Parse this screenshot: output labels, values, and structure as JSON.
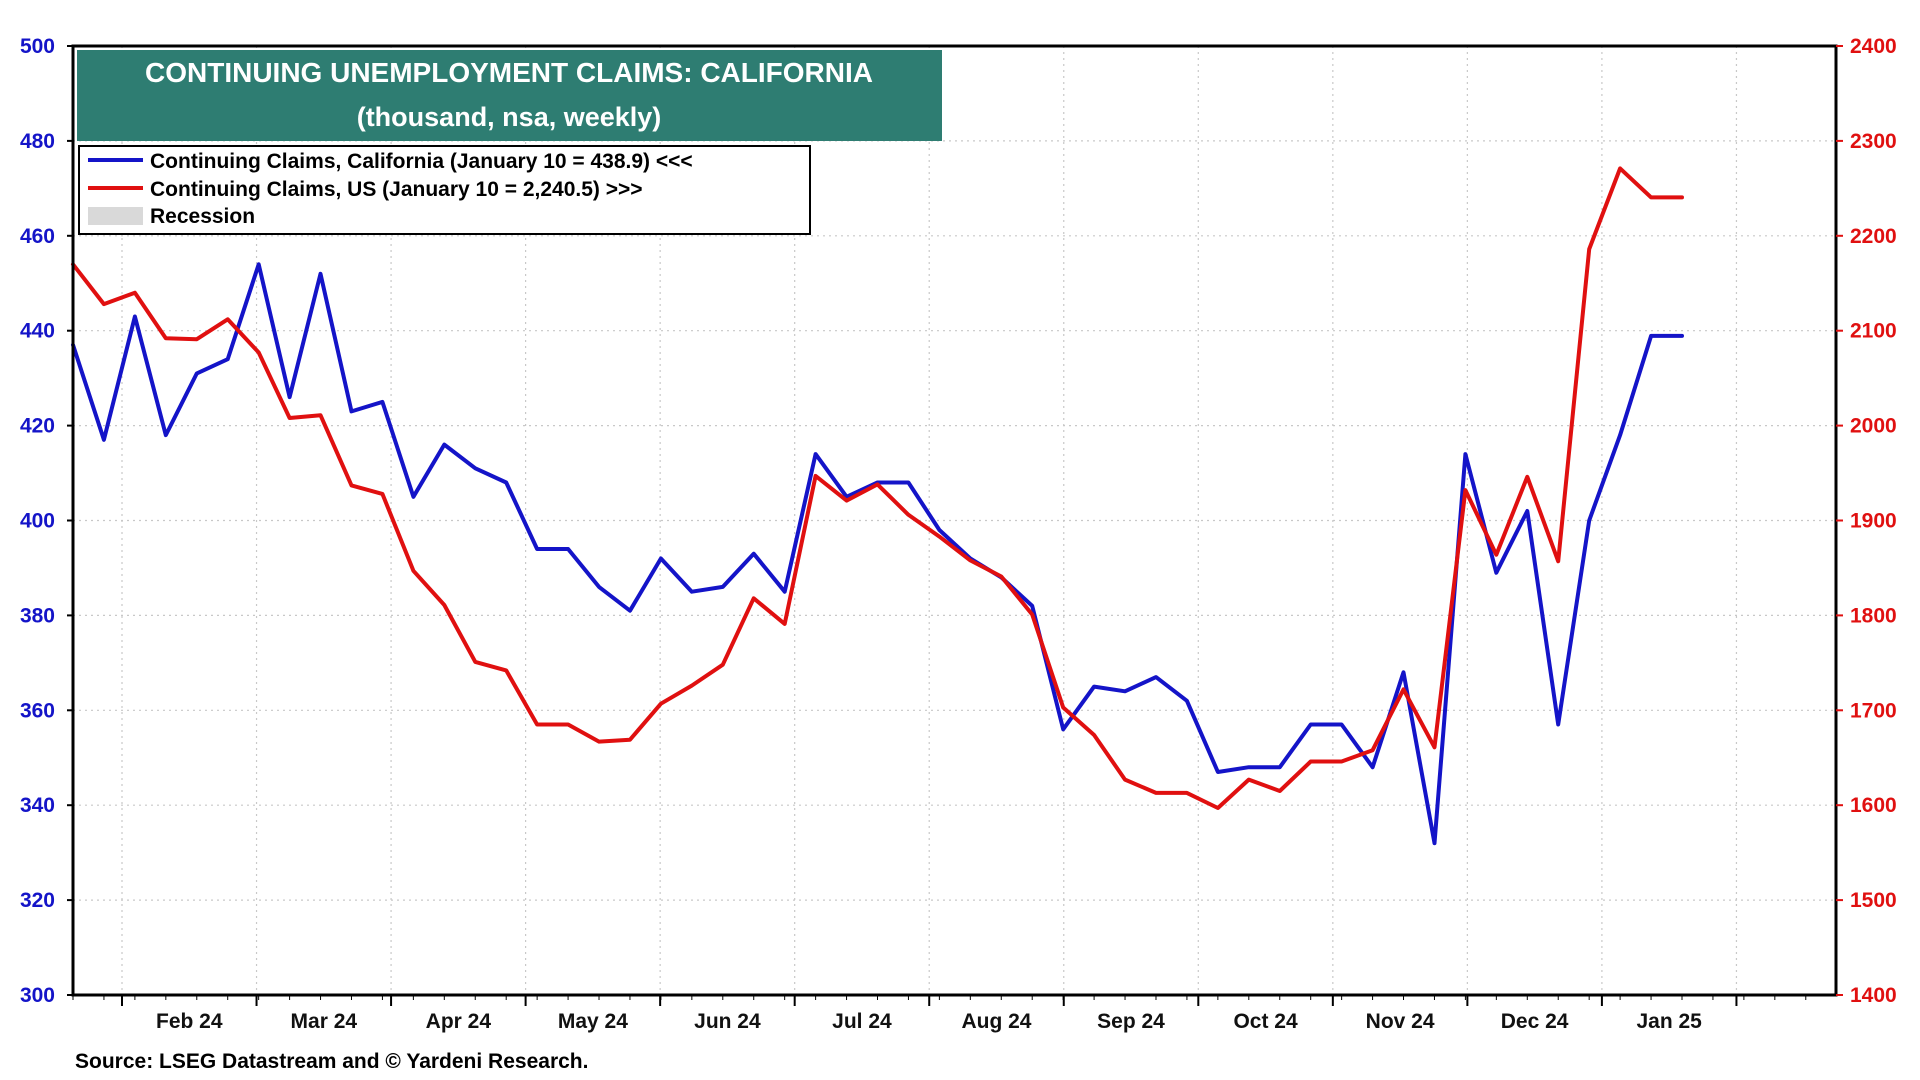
{
  "chart_data": {
    "type": "line",
    "title": "CONTINUING UNEMPLOYMENT CLAIMS: CALIFORNIA",
    "subtitle": "(thousand, nsa, weekly)",
    "source": "Source: LSEG Datastream and © Yardeni Research.",
    "x_tick_labels": [
      "Feb 24",
      "Mar 24",
      "Apr 24",
      "May 24",
      "Jun 24",
      "Jul 24",
      "Aug 24",
      "Sep 24",
      "Oct 24",
      "Nov 24",
      "Dec 24",
      "Jan 25"
    ],
    "y_left": {
      "min": 300,
      "max": 500,
      "step": 20,
      "color": "#1414c8",
      "ticks": [
        "300",
        "320",
        "340",
        "360",
        "380",
        "400",
        "420",
        "440",
        "460",
        "480",
        "500"
      ]
    },
    "y_right": {
      "min": 1400,
      "max": 2400,
      "step": 100,
      "color": "#e01010",
      "ticks": [
        "1400",
        "1500",
        "1600",
        "1700",
        "1800",
        "1900",
        "2000",
        "2100",
        "2200",
        "2300",
        "2400"
      ]
    },
    "grid": true,
    "legend_position": "top-left",
    "legend": [
      {
        "label": "Continuing Claims, California (January 10 = 438.9) <<<",
        "color": "#1414c8",
        "swatch": "line"
      },
      {
        "label": "Continuing Claims, US (January 10 = 2,240.5) >>>",
        "color": "#e01010",
        "swatch": "line"
      },
      {
        "label": "Recession",
        "color": "#d9d9d9",
        "swatch": "box"
      }
    ],
    "series": [
      {
        "name": "Continuing Claims, California (January 10 = 438.9) <<<",
        "axis": "left",
        "color": "#1414c8",
        "values": [
          437,
          417,
          443,
          418,
          431,
          434,
          454,
          426,
          452,
          423,
          425,
          405,
          416,
          411,
          408,
          394,
          394,
          386,
          381,
          392,
          385,
          386,
          393,
          385,
          414,
          405,
          408,
          408,
          398,
          392,
          388,
          382,
          356,
          365,
          364,
          367,
          362,
          347,
          348,
          348,
          357,
          357,
          348,
          368,
          332,
          414,
          389,
          402,
          357,
          400,
          418,
          438.9,
          438.9
        ]
      },
      {
        "name": "Continuing Claims, US (January 10 = 2,240.5) >>>",
        "axis": "right",
        "color": "#e01010",
        "values": [
          2170,
          2128,
          2140,
          2092,
          2091,
          2112,
          2077,
          2008,
          2011,
          1937,
          1928,
          1847,
          1811,
          1751,
          1742,
          1685,
          1685,
          1667,
          1669,
          1707,
          1726,
          1748,
          1818,
          1791,
          1947,
          1921,
          1938,
          1906,
          1883,
          1858,
          1841,
          1801,
          1703,
          1674,
          1627,
          1613,
          1613,
          1597,
          1627,
          1615,
          1646,
          1646,
          1658,
          1722,
          1661,
          1932,
          1864,
          1946,
          1857,
          2186,
          2271,
          2240.5,
          2240.5
        ]
      }
    ]
  }
}
